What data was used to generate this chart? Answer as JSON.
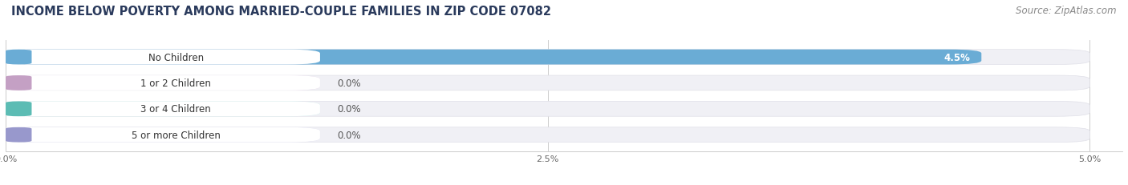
{
  "title": "INCOME BELOW POVERTY AMONG MARRIED-COUPLE FAMILIES IN ZIP CODE 07082",
  "source": "Source: ZipAtlas.com",
  "categories": [
    "No Children",
    "1 or 2 Children",
    "3 or 4 Children",
    "5 or more Children"
  ],
  "values": [
    4.5,
    0.0,
    0.0,
    0.0
  ],
  "bar_colors": [
    "#6aacd5",
    "#c4a0c4",
    "#5cbcb4",
    "#9898cc"
  ],
  "label_bg_colors": [
    "#d4e8f5",
    "#e4d0e8",
    "#c0eae8",
    "#d4d4ec"
  ],
  "x_max": 5.0,
  "x_ticks": [
    0.0,
    2.5,
    5.0
  ],
  "x_tick_labels": [
    "0.0%",
    "2.5%",
    "5.0%"
  ],
  "bg_color": "#ffffff",
  "bar_track_color": "#f0f0f5",
  "bar_track_border": "#e0e0e8",
  "title_fontsize": 10.5,
  "source_fontsize": 8.5,
  "label_fontsize": 8.5,
  "value_fontsize": 8.5
}
